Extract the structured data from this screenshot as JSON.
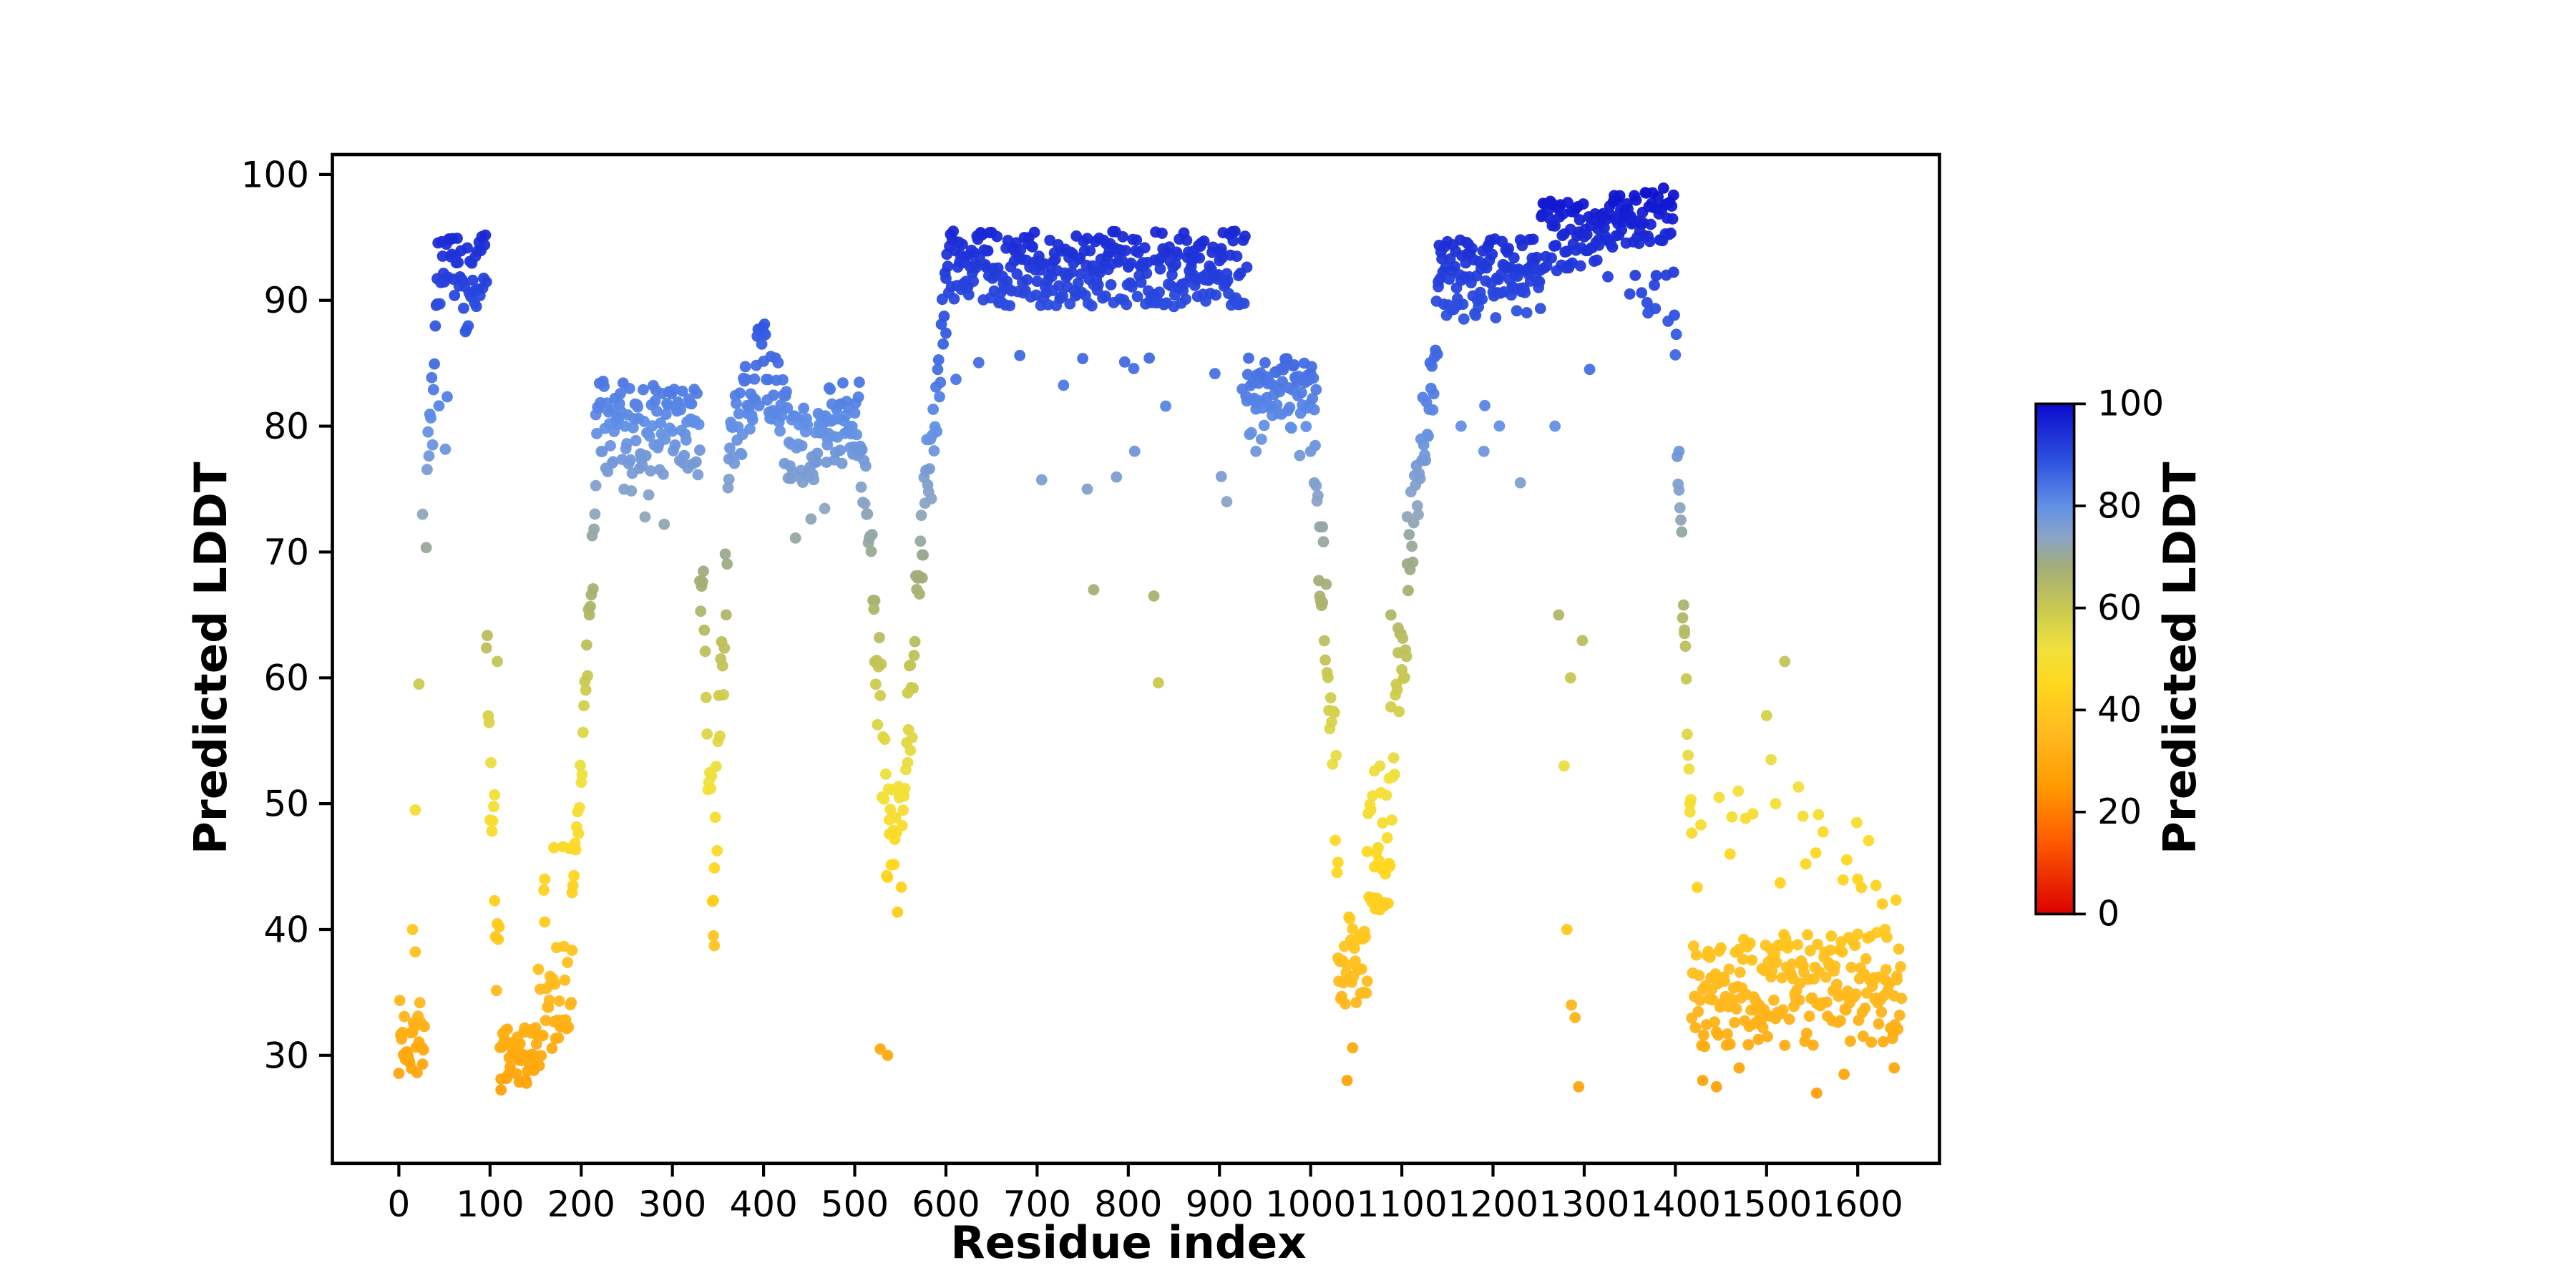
{
  "figure": {
    "background": "#ffffff",
    "axis_color": "#000000"
  },
  "chart_data": {
    "type": "scatter",
    "title": "",
    "xlabel": "Residue index",
    "ylabel": "Predicted LDDT",
    "xlim": [
      -73,
      1689
    ],
    "ylim": [
      21.4,
      101.6
    ],
    "xticks": [
      0,
      100,
      200,
      300,
      400,
      500,
      600,
      700,
      800,
      900,
      1000,
      1100,
      1200,
      1300,
      1400,
      1500,
      1600
    ],
    "yticks": [
      30,
      40,
      50,
      60,
      70,
      80,
      90,
      100
    ],
    "grid": false,
    "legend": "none",
    "marker_size": 3.4,
    "colorbar": {
      "label": "Predicted LDDT",
      "ticks": [
        0,
        20,
        40,
        60,
        80,
        100
      ],
      "min": 0,
      "max": 100,
      "position": "right"
    },
    "colormap": [
      [
        0,
        "#dc0000"
      ],
      [
        15,
        "#ff6000"
      ],
      [
        25,
        "#ff9a00"
      ],
      [
        35,
        "#ffb91e"
      ],
      [
        45,
        "#ffd71e"
      ],
      [
        52,
        "#f0e13c"
      ],
      [
        60,
        "#c8c850"
      ],
      [
        68,
        "#a2ad78"
      ],
      [
        74,
        "#8aa4c8"
      ],
      [
        80,
        "#6190e6"
      ],
      [
        88,
        "#3157e1"
      ],
      [
        100,
        "#0a0acd"
      ]
    ],
    "series_spec": {
      "description": "Per-residue predicted LDDT values, one point per residue index; segments are [x_start, x_end, y_start, y_end, noise_amplitude, outlier_probability, outlier_min, outlier_max]",
      "seed": 7,
      "clamp": [
        24.8,
        99.3
      ],
      "segments": [
        [
          0,
          28,
          31.5,
          31.5,
          3.0,
          0.06,
          37,
          44
        ],
        [
          30,
          42,
          74,
          87,
          4.0,
          0,
          0,
          0
        ],
        [
          42,
          96,
          91,
          91.5,
          3.8,
          0.07,
          78,
          85
        ],
        [
          96,
          112,
          60,
          31,
          6.0,
          0,
          0,
          0
        ],
        [
          112,
          152,
          29.5,
          30,
          2.6,
          0,
          0,
          0
        ],
        [
          152,
          190,
          33,
          36,
          4.0,
          0.1,
          40,
          47
        ],
        [
          190,
          216,
          40,
          74,
          4.0,
          0,
          0,
          0
        ],
        [
          216,
          330,
          80,
          79.5,
          3.6,
          0.05,
          72,
          76
        ],
        [
          330,
          346,
          71,
          43,
          5.0,
          0,
          0,
          0
        ],
        [
          346,
          362,
          45,
          74,
          5.0,
          0,
          0,
          0
        ],
        [
          362,
          400,
          78,
          85.5,
          3.4,
          0,
          0,
          0
        ],
        [
          400,
          430,
          85.5,
          78.5,
          3.4,
          0,
          0,
          0
        ],
        [
          430,
          470,
          78.5,
          78.5,
          3.0,
          0.05,
          71,
          74
        ],
        [
          470,
          506,
          80,
          80.5,
          3.4,
          0,
          0,
          0
        ],
        [
          506,
          522,
          78,
          67,
          3.0,
          0,
          0,
          0
        ],
        [
          522,
          538,
          65,
          45,
          5.0,
          0,
          0,
          0
        ],
        [
          538,
          553,
          46,
          46,
          6.0,
          0,
          0,
          0
        ],
        [
          553,
          574,
          50,
          70,
          5.0,
          0,
          0,
          0
        ],
        [
          574,
          600,
          71,
          91,
          4.5,
          0,
          0,
          0
        ],
        [
          600,
          930,
          92.5,
          92.5,
          3.0,
          0.055,
          74,
          86
        ],
        [
          930,
          1006,
          83.2,
          83,
          2.3,
          0.05,
          77.5,
          80.5
        ],
        [
          1006,
          1030,
          76,
          48,
          5.0,
          0,
          0,
          0
        ],
        [
          1030,
          1062,
          37.5,
          37.5,
          3.5,
          0,
          0,
          0
        ],
        [
          1062,
          1086,
          46,
          46,
          5.0,
          0,
          0,
          0
        ],
        [
          1086,
          1106,
          50,
          68,
          6.0,
          0,
          0,
          0
        ],
        [
          1106,
          1140,
          70,
          88,
          4.0,
          0,
          0,
          0
        ],
        [
          1140,
          1252,
          91.5,
          92,
          3.2,
          0.06,
          80,
          87
        ],
        [
          1252,
          1316,
          95,
          95.5,
          2.8,
          0.05,
          62,
          85
        ],
        [
          1316,
          1398,
          96.3,
          96.8,
          2.2,
          0.05,
          86,
          93
        ],
        [
          1398,
          1418,
          90,
          46,
          4.0,
          0,
          0,
          0
        ],
        [
          1418,
          1648,
          35,
          35.5,
          4.5,
          0.07,
          42,
          52
        ]
      ],
      "extra_points": [
        [
          15,
          40
        ],
        [
          18,
          49.5
        ],
        [
          22,
          59.5
        ],
        [
          26,
          73
        ],
        [
          105,
          50.7
        ],
        [
          108,
          61.3
        ],
        [
          160,
          44
        ],
        [
          170,
          46.5
        ],
        [
          345,
          39.5
        ],
        [
          528,
          30.5
        ],
        [
          536,
          30
        ],
        [
          558,
          58.8
        ],
        [
          561,
          61
        ],
        [
          755,
          75
        ],
        [
          762,
          67
        ],
        [
          828,
          66.5
        ],
        [
          833,
          59.6
        ],
        [
          902,
          76
        ],
        [
          908,
          74
        ],
        [
          940,
          78
        ],
        [
          1000,
          78
        ],
        [
          1004,
          75.5
        ],
        [
          1010,
          72
        ],
        [
          1013,
          66
        ],
        [
          1040,
          28
        ],
        [
          1046,
          30.6
        ],
        [
          1070,
          52.6
        ],
        [
          1076,
          53
        ],
        [
          1088,
          65
        ],
        [
          1096,
          62
        ],
        [
          1165,
          80
        ],
        [
          1190,
          78
        ],
        [
          1230,
          75.5
        ],
        [
          1268,
          80
        ],
        [
          1272,
          65
        ],
        [
          1278,
          53
        ],
        [
          1281,
          40
        ],
        [
          1285,
          60
        ],
        [
          1286,
          34
        ],
        [
          1290,
          33
        ],
        [
          1294,
          27.5
        ],
        [
          1370,
          89
        ],
        [
          1390,
          92
        ],
        [
          1404,
          78
        ],
        [
          1410,
          63.8
        ],
        [
          1416,
          50
        ],
        [
          1430,
          28
        ],
        [
          1445,
          27.5
        ],
        [
          1448,
          50.5
        ],
        [
          1460,
          46
        ],
        [
          1470,
          29
        ],
        [
          1500,
          57
        ],
        [
          1505,
          53.5
        ],
        [
          1510,
          50
        ],
        [
          1520,
          61.3
        ],
        [
          1540,
          49
        ],
        [
          1555,
          27
        ],
        [
          1585,
          28.5
        ],
        [
          1600,
          44
        ],
        [
          1620,
          43.5
        ],
        [
          1630,
          40
        ],
        [
          1640,
          29
        ],
        [
          1643,
          36
        ]
      ]
    }
  }
}
